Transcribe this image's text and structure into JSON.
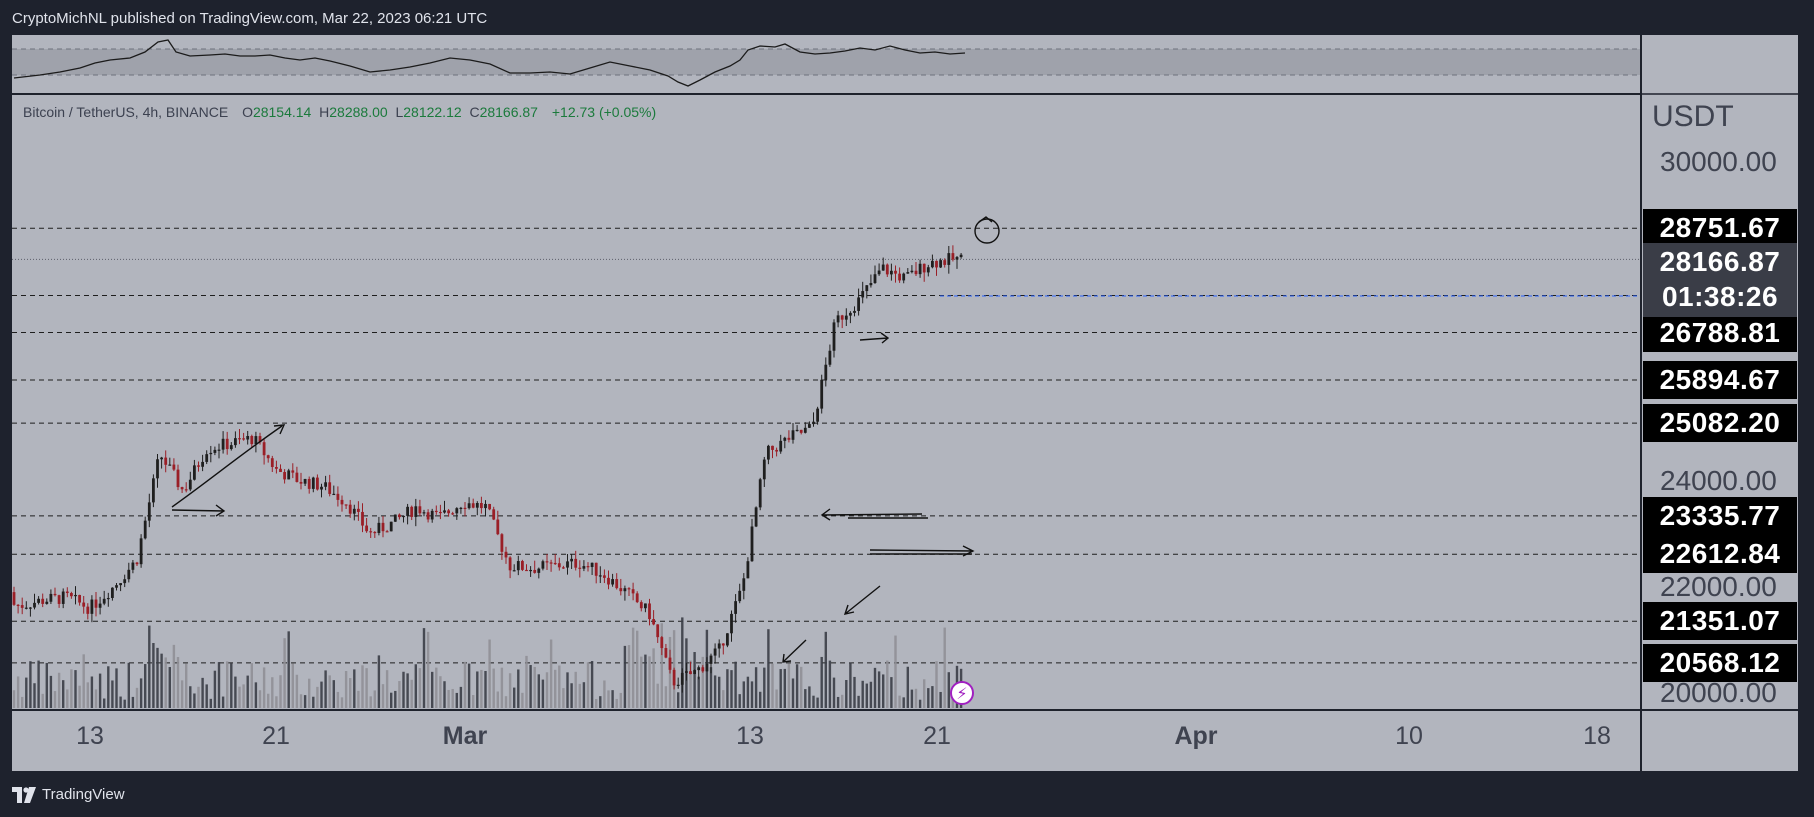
{
  "header": {
    "publisher_line": "CryptoMichNL published on TradingView.com, Mar 22, 2023 06:21 UTC"
  },
  "footer": {
    "brand": "TradingView"
  },
  "legend": {
    "symbol": "Bitcoin / TetherUS, 4h, BINANCE",
    "open_label": "O",
    "open": "28154.14",
    "high_label": "H",
    "high": "28288.00",
    "low_label": "L",
    "low": "28122.12",
    "close_label": "C",
    "close": "28166.87",
    "change": "+12.73 (+0.05%)"
  },
  "price_scale": {
    "currency": "USDT",
    "ticks": [
      "30000.00",
      "24000.00",
      "22000.00",
      "20000.00"
    ],
    "current_price": "28166.87",
    "countdown": "01:38:26",
    "level_tags": [
      {
        "value": "28751.67",
        "style": "black"
      },
      {
        "value": "27486.51",
        "style": "blue"
      },
      {
        "value": "26788.81",
        "style": "black"
      },
      {
        "value": "25894.67",
        "style": "black"
      },
      {
        "value": "25082.20",
        "style": "black"
      },
      {
        "value": "23335.77",
        "style": "black"
      },
      {
        "value": "22612.84",
        "style": "black"
      },
      {
        "value": "21351.07",
        "style": "black"
      },
      {
        "value": "20568.12",
        "style": "black"
      }
    ]
  },
  "time_axis": [
    {
      "label": "13",
      "month": false
    },
    {
      "label": "21",
      "month": false
    },
    {
      "label": "Mar",
      "month": true
    },
    {
      "label": "13",
      "month": false
    },
    {
      "label": "21",
      "month": false
    },
    {
      "label": "Apr",
      "month": true
    },
    {
      "label": "10",
      "month": false
    },
    {
      "label": "18",
      "month": false
    }
  ],
  "colors": {
    "background": "#b2b5be",
    "up": "#1f1f1f",
    "down": "#9a1f27",
    "accent": "#2962ff"
  },
  "chart_data": {
    "type": "candlestick",
    "symbol": "BTCUSDT",
    "interval": "4h",
    "ylim": [
      19900,
      31000
    ],
    "price_levels": [
      28751.67,
      27486.51,
      26788.81,
      25894.67,
      25082.2,
      23335.77,
      22612.84,
      21351.07,
      20568.12
    ],
    "price_path": [
      [
        "Feb 8",
        21900
      ],
      [
        "Feb 9",
        21700
      ],
      [
        "Feb 10",
        21650
      ],
      [
        "Feb 11",
        21750
      ],
      [
        "Feb 12",
        21800
      ],
      [
        "Feb 13",
        21600
      ],
      [
        "Feb 14",
        22000
      ],
      [
        "Feb 15",
        22500
      ],
      [
        "Feb 16",
        24500
      ],
      [
        "Feb 17",
        23800
      ],
      [
        "Feb 18",
        24600
      ],
      [
        "Feb 19",
        24700
      ],
      [
        "Feb 20",
        24800
      ],
      [
        "Feb 21",
        24200
      ],
      [
        "Feb 22",
        24000
      ],
      [
        "Feb 23",
        23900
      ],
      [
        "Feb 24",
        23600
      ],
      [
        "Feb 25",
        23000
      ],
      [
        "Feb 26",
        23200
      ],
      [
        "Feb 27",
        23500
      ],
      [
        "Feb 28",
        23300
      ],
      [
        "Mar 1",
        23600
      ],
      [
        "Mar 2",
        23500
      ],
      [
        "Mar 3",
        22400
      ],
      [
        "Mar 4",
        22350
      ],
      [
        "Mar 5",
        22400
      ],
      [
        "Mar 6",
        22450
      ],
      [
        "Mar 7",
        22250
      ],
      [
        "Mar 8",
        21900
      ],
      [
        "Mar 9",
        21500
      ],
      [
        "Mar 10",
        20200
      ],
      [
        "Mar 11",
        20400
      ],
      [
        "Mar 12",
        20800
      ],
      [
        "Mar 13",
        22000
      ],
      [
        "Mar 14",
        24500
      ],
      [
        "Mar 15",
        24800
      ],
      [
        "Mar 16",
        25000
      ],
      [
        "Mar 17",
        27000
      ],
      [
        "Mar 18",
        27400
      ],
      [
        "Mar 19",
        28000
      ],
      [
        "Mar 20",
        27800
      ],
      [
        "Mar 21",
        28100
      ],
      [
        "Mar 22",
        28166.87
      ]
    ]
  }
}
